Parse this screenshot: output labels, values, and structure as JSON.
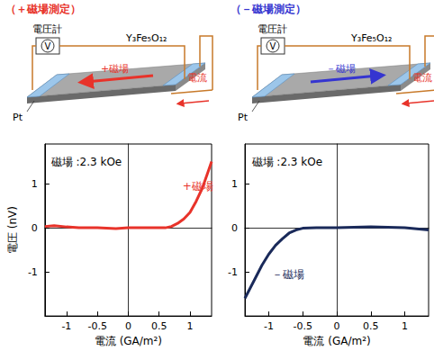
{
  "chart_data": [
    {
      "type": "line",
      "x_label": "電流 (GA/m²)",
      "y_label": "電圧 (nV)",
      "xlim": [
        -1.35,
        1.35
      ],
      "ylim": [
        -2,
        1.9
      ],
      "xticks": [
        -1,
        -0.5,
        0,
        0.5,
        1
      ],
      "yticks": [
        -1,
        0,
        1
      ],
      "grid": false,
      "annotations": [
        {
          "text": "磁場 :2.3 kOe",
          "x": -1.25,
          "y": 1.5
        },
        {
          "text": "+磁場",
          "x": 0.88,
          "y": 0.95,
          "color": "#e8332a"
        }
      ],
      "series": [
        {
          "color": "#e8332a",
          "x": [
            -1.35,
            -1.2,
            -1.0,
            -0.8,
            -0.5,
            -0.2,
            0,
            0.3,
            0.5,
            0.6,
            0.7,
            0.8,
            0.9,
            1.0,
            1.1,
            1.2,
            1.3,
            1.35
          ],
          "values": [
            0.03,
            0.05,
            0.02,
            0.0,
            0.0,
            -0.02,
            0.0,
            0.0,
            0.0,
            0.0,
            0.03,
            0.1,
            0.2,
            0.35,
            0.6,
            0.9,
            1.3,
            1.5
          ]
        }
      ]
    },
    {
      "type": "line",
      "x_label": "電流 (GA/m²)",
      "xlim": [
        -1.35,
        1.35
      ],
      "ylim": [
        -2,
        1.9
      ],
      "xticks": [
        -1,
        -0.5,
        0,
        0.5,
        1
      ],
      "yticks": [
        -1,
        0,
        1
      ],
      "grid": false,
      "annotations": [
        {
          "text": "磁場 :2.3 kOe",
          "x": -1.25,
          "y": 1.5
        },
        {
          "text": "－磁場",
          "x": -0.95,
          "y": -1.05,
          "color": "#1a2a5a"
        }
      ],
      "series": [
        {
          "color": "#1a2a5a",
          "x": [
            -1.35,
            -1.2,
            -1.1,
            -1.0,
            -0.9,
            -0.8,
            -0.7,
            -0.6,
            -0.5,
            -0.3,
            0,
            0.5,
            1.0,
            1.35
          ],
          "values": [
            -1.6,
            -1.15,
            -0.85,
            -0.6,
            -0.4,
            -0.25,
            -0.12,
            -0.05,
            -0.01,
            0.0,
            0.0,
            0.02,
            0.0,
            -0.05
          ]
        }
      ]
    }
  ],
  "diagrams": [
    {
      "title": "（＋磁場測定）",
      "color": "#e8332a",
      "voltmeter": "電圧計",
      "meter": "V",
      "film": "Y₃Fe₅O₁₂",
      "field": "+磁場",
      "current": "電流",
      "electrode": "Pt",
      "direction": "left"
    },
    {
      "title": "（－磁場測定）",
      "color": "#3535d0",
      "voltmeter": "電圧計",
      "meter": "V",
      "film": "Y₃Fe₅O₁₂",
      "field": "－磁場",
      "current": "電流",
      "electrode": "Pt",
      "direction": "right"
    }
  ]
}
